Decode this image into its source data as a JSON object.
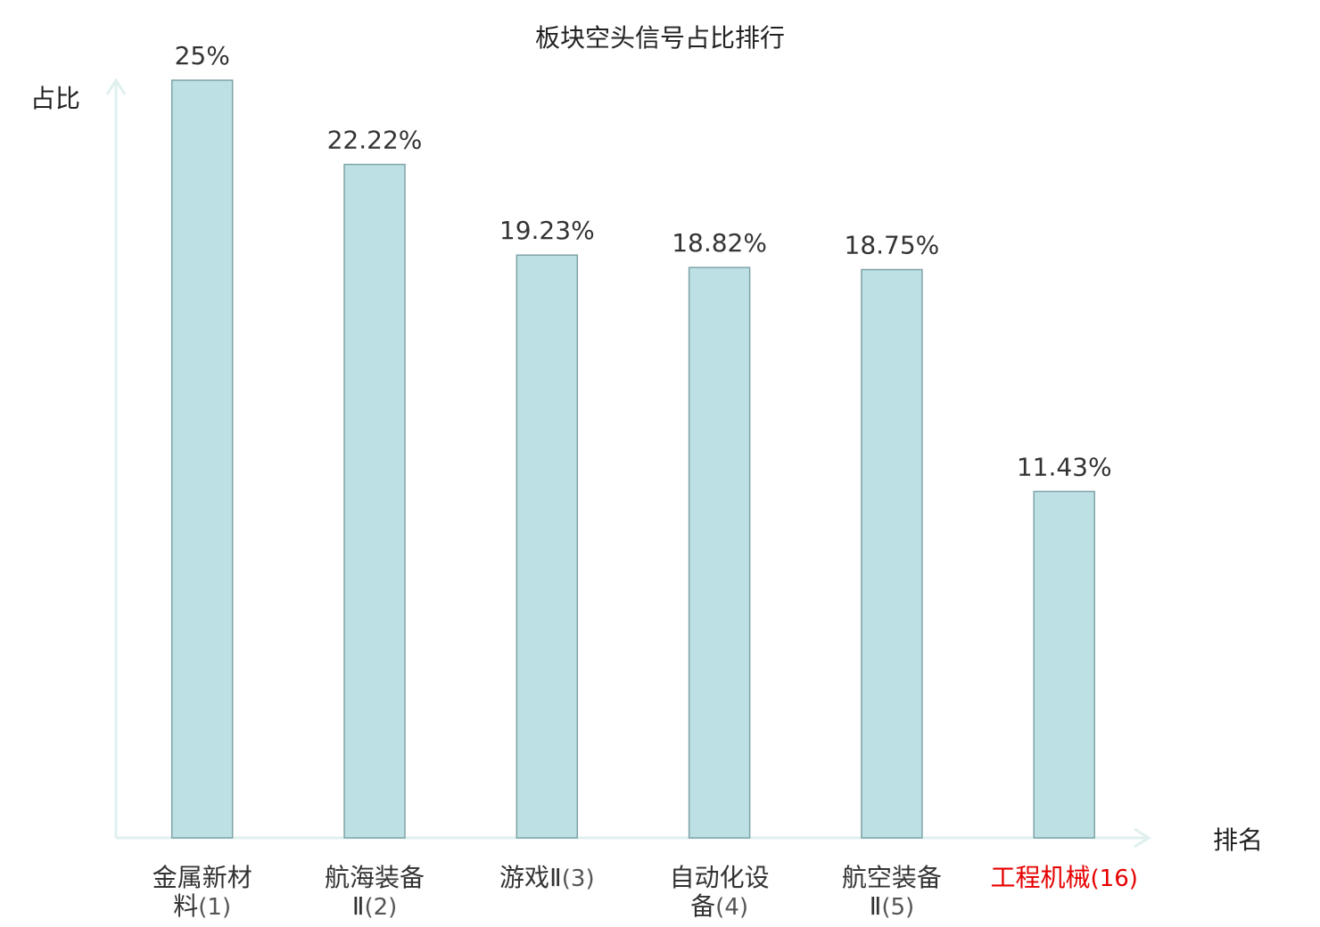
{
  "chart_data": {
    "type": "bar",
    "title": "板块空头信号占比排行",
    "ylabel": "占比",
    "xlabel": "排名",
    "ylim": [
      0,
      25
    ],
    "grid": false,
    "legend": "none",
    "unit": "%",
    "bar_color": "#bce0e3",
    "bar_border_color": "#7fa3a6",
    "axis_color": "#dff0ef",
    "highlight_color": "#e60000",
    "categories": [
      {
        "lines": [
          "金属新材",
          "料"
        ],
        "rank": "(1)",
        "highlight": false
      },
      {
        "lines": [
          "航海装备",
          "Ⅱ"
        ],
        "rank": "(2)",
        "highlight": false
      },
      {
        "lines": [
          "游戏Ⅱ"
        ],
        "rank": "(3)",
        "highlight": false
      },
      {
        "lines": [
          "自动化设",
          "备"
        ],
        "rank": "(4)",
        "highlight": false
      },
      {
        "lines": [
          "航空装备",
          "Ⅱ"
        ],
        "rank": "(5)",
        "highlight": false
      },
      {
        "lines": [
          "工程机械"
        ],
        "rank": "(16)",
        "highlight": true
      }
    ],
    "values": [
      25,
      22.22,
      19.23,
      18.82,
      18.75,
      11.43
    ],
    "value_labels": [
      "25%",
      "22.22%",
      "19.23%",
      "18.82%",
      "18.75%",
      "11.43%"
    ]
  }
}
